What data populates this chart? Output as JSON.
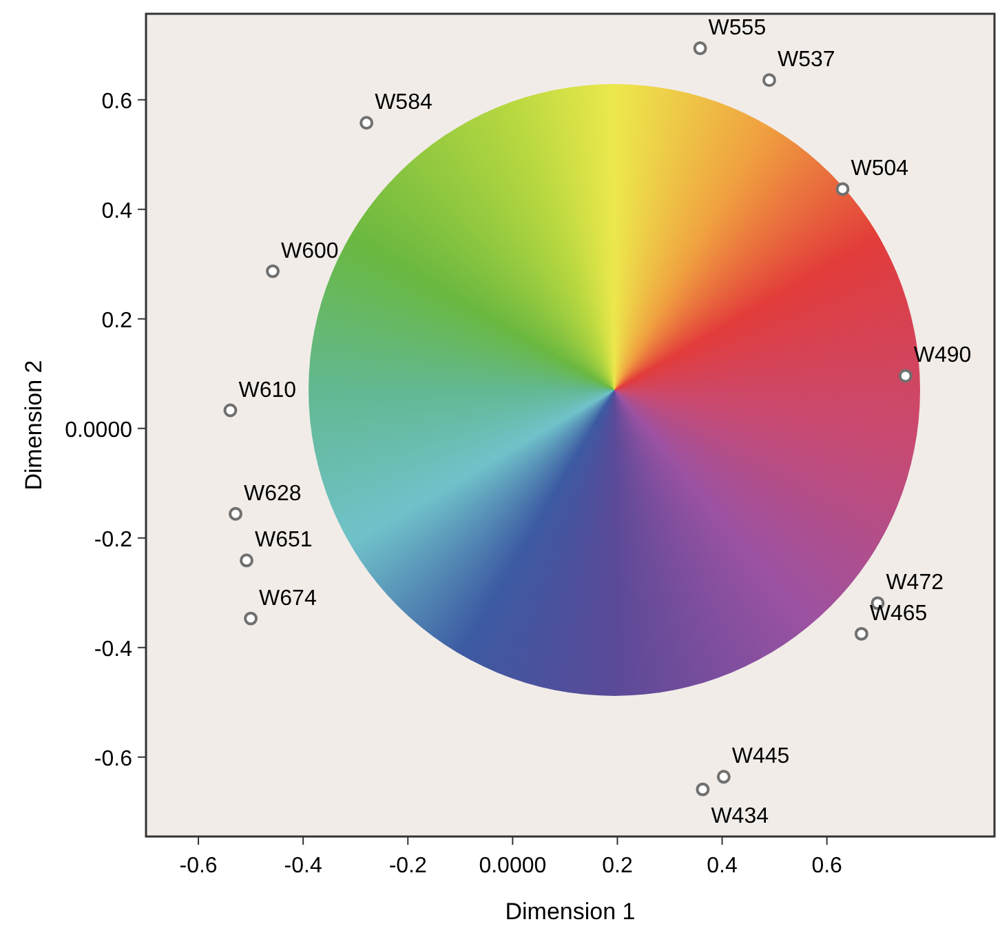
{
  "chart_data": {
    "type": "scatter",
    "xlabel": "Dimension 1",
    "ylabel": "Dimension 2",
    "xlim": [
      -0.7,
      0.92
    ],
    "ylim": [
      -0.745,
      0.757
    ],
    "xticks": [
      -0.6,
      -0.4,
      -0.2,
      {
        "value": 0,
        "label": "0.0000"
      },
      0.2,
      0.4,
      0.6
    ],
    "yticks": [
      -0.6,
      -0.4,
      -0.2,
      {
        "value": 0,
        "label": "0.0000"
      },
      0.2,
      0.4,
      0.6
    ],
    "grid": false,
    "marker": "circle",
    "series": [
      {
        "color": "#707070",
        "x": [
          0.358,
          0.49,
          -0.279,
          0.63,
          -0.458,
          0.75,
          -0.539,
          -0.529,
          -0.508,
          -0.5,
          0.697,
          0.666,
          0.403,
          0.363
        ],
        "values": [
          0.694,
          0.636,
          0.558,
          0.437,
          0.287,
          0.096,
          0.033,
          -0.156,
          -0.241,
          -0.347,
          -0.319,
          -0.375,
          -0.636,
          -0.659
        ]
      }
    ],
    "annotations": [
      {
        "text": "W555",
        "x": 0.358,
        "y": 0.694
      },
      {
        "text": "W537",
        "x": 0.49,
        "y": 0.636
      },
      {
        "text": "W584",
        "x": -0.279,
        "y": 0.558
      },
      {
        "text": "W504",
        "x": 0.63,
        "y": 0.437
      },
      {
        "text": "W600",
        "x": -0.458,
        "y": 0.287
      },
      {
        "text": "W490",
        "x": 0.75,
        "y": 0.096
      },
      {
        "text": "W610",
        "x": -0.539,
        "y": 0.033
      },
      {
        "text": "W628",
        "x": -0.529,
        "y": -0.156
      },
      {
        "text": "W651",
        "x": -0.508,
        "y": -0.241
      },
      {
        "text": "W674",
        "x": -0.5,
        "y": -0.347
      },
      {
        "text": "W472",
        "x": 0.697,
        "y": -0.319
      },
      {
        "text": "W465",
        "x": 0.666,
        "y": -0.375
      },
      {
        "text": "W445",
        "x": 0.403,
        "y": -0.636
      },
      {
        "text": "W434",
        "x": 0.363,
        "y": -0.659
      }
    ]
  }
}
